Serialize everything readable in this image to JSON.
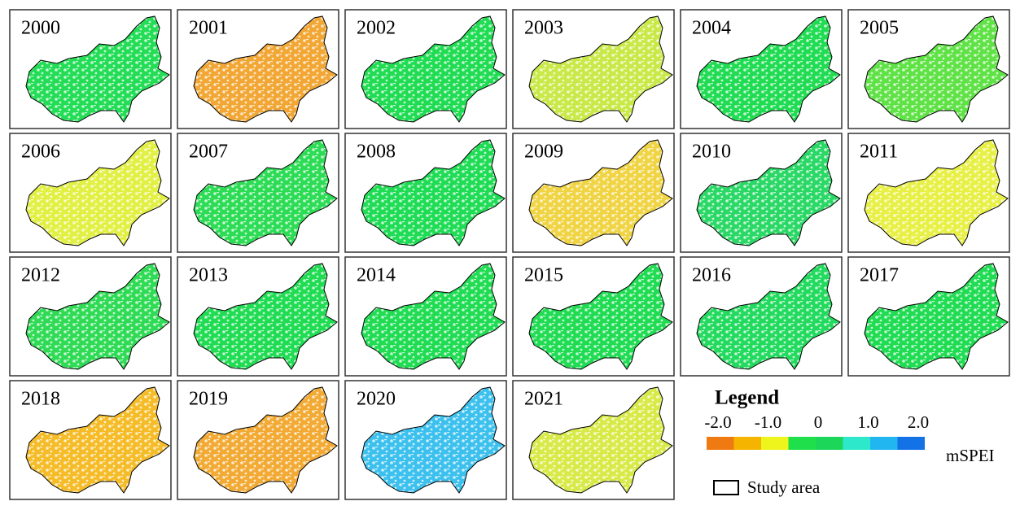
{
  "panels": [
    {
      "year": "2000",
      "color": "#22dd55"
    },
    {
      "year": "2001",
      "color": "#f2a634"
    },
    {
      "year": "2002",
      "color": "#1fdc52"
    },
    {
      "year": "2003",
      "color": "#c9e948"
    },
    {
      "year": "2004",
      "color": "#1fdc52"
    },
    {
      "year": "2005",
      "color": "#5fe245"
    },
    {
      "year": "2006",
      "color": "#e2f043"
    },
    {
      "year": "2007",
      "color": "#2cdc55"
    },
    {
      "year": "2008",
      "color": "#1fdc55"
    },
    {
      "year": "2009",
      "color": "#f0d444"
    },
    {
      "year": "2010",
      "color": "#2ad866"
    },
    {
      "year": "2011",
      "color": "#e8f046"
    },
    {
      "year": "2012",
      "color": "#2fdb55"
    },
    {
      "year": "2013",
      "color": "#1fdc52"
    },
    {
      "year": "2014",
      "color": "#1fdc52"
    },
    {
      "year": "2015",
      "color": "#1fdc52"
    },
    {
      "year": "2016",
      "color": "#22da5e"
    },
    {
      "year": "2017",
      "color": "#1fdc52"
    },
    {
      "year": "2018",
      "color": "#f5bc28"
    },
    {
      "year": "2019",
      "color": "#f2aa34"
    },
    {
      "year": "2020",
      "color": "#3cc0ee"
    },
    {
      "year": "2021",
      "color": "#d8ea48"
    }
  ],
  "legend": {
    "title": "Legend",
    "ticks": [
      "-2.0",
      "-1.0",
      "0",
      "1.0",
      "2.0"
    ],
    "colors": [
      "#f07a12",
      "#f5b400",
      "#eef51c",
      "#1fe04a",
      "#1cd65a",
      "#2ee8cc",
      "#22b6f0",
      "#1272e6"
    ],
    "unit": "mSPEI",
    "study_area": "Study area"
  }
}
